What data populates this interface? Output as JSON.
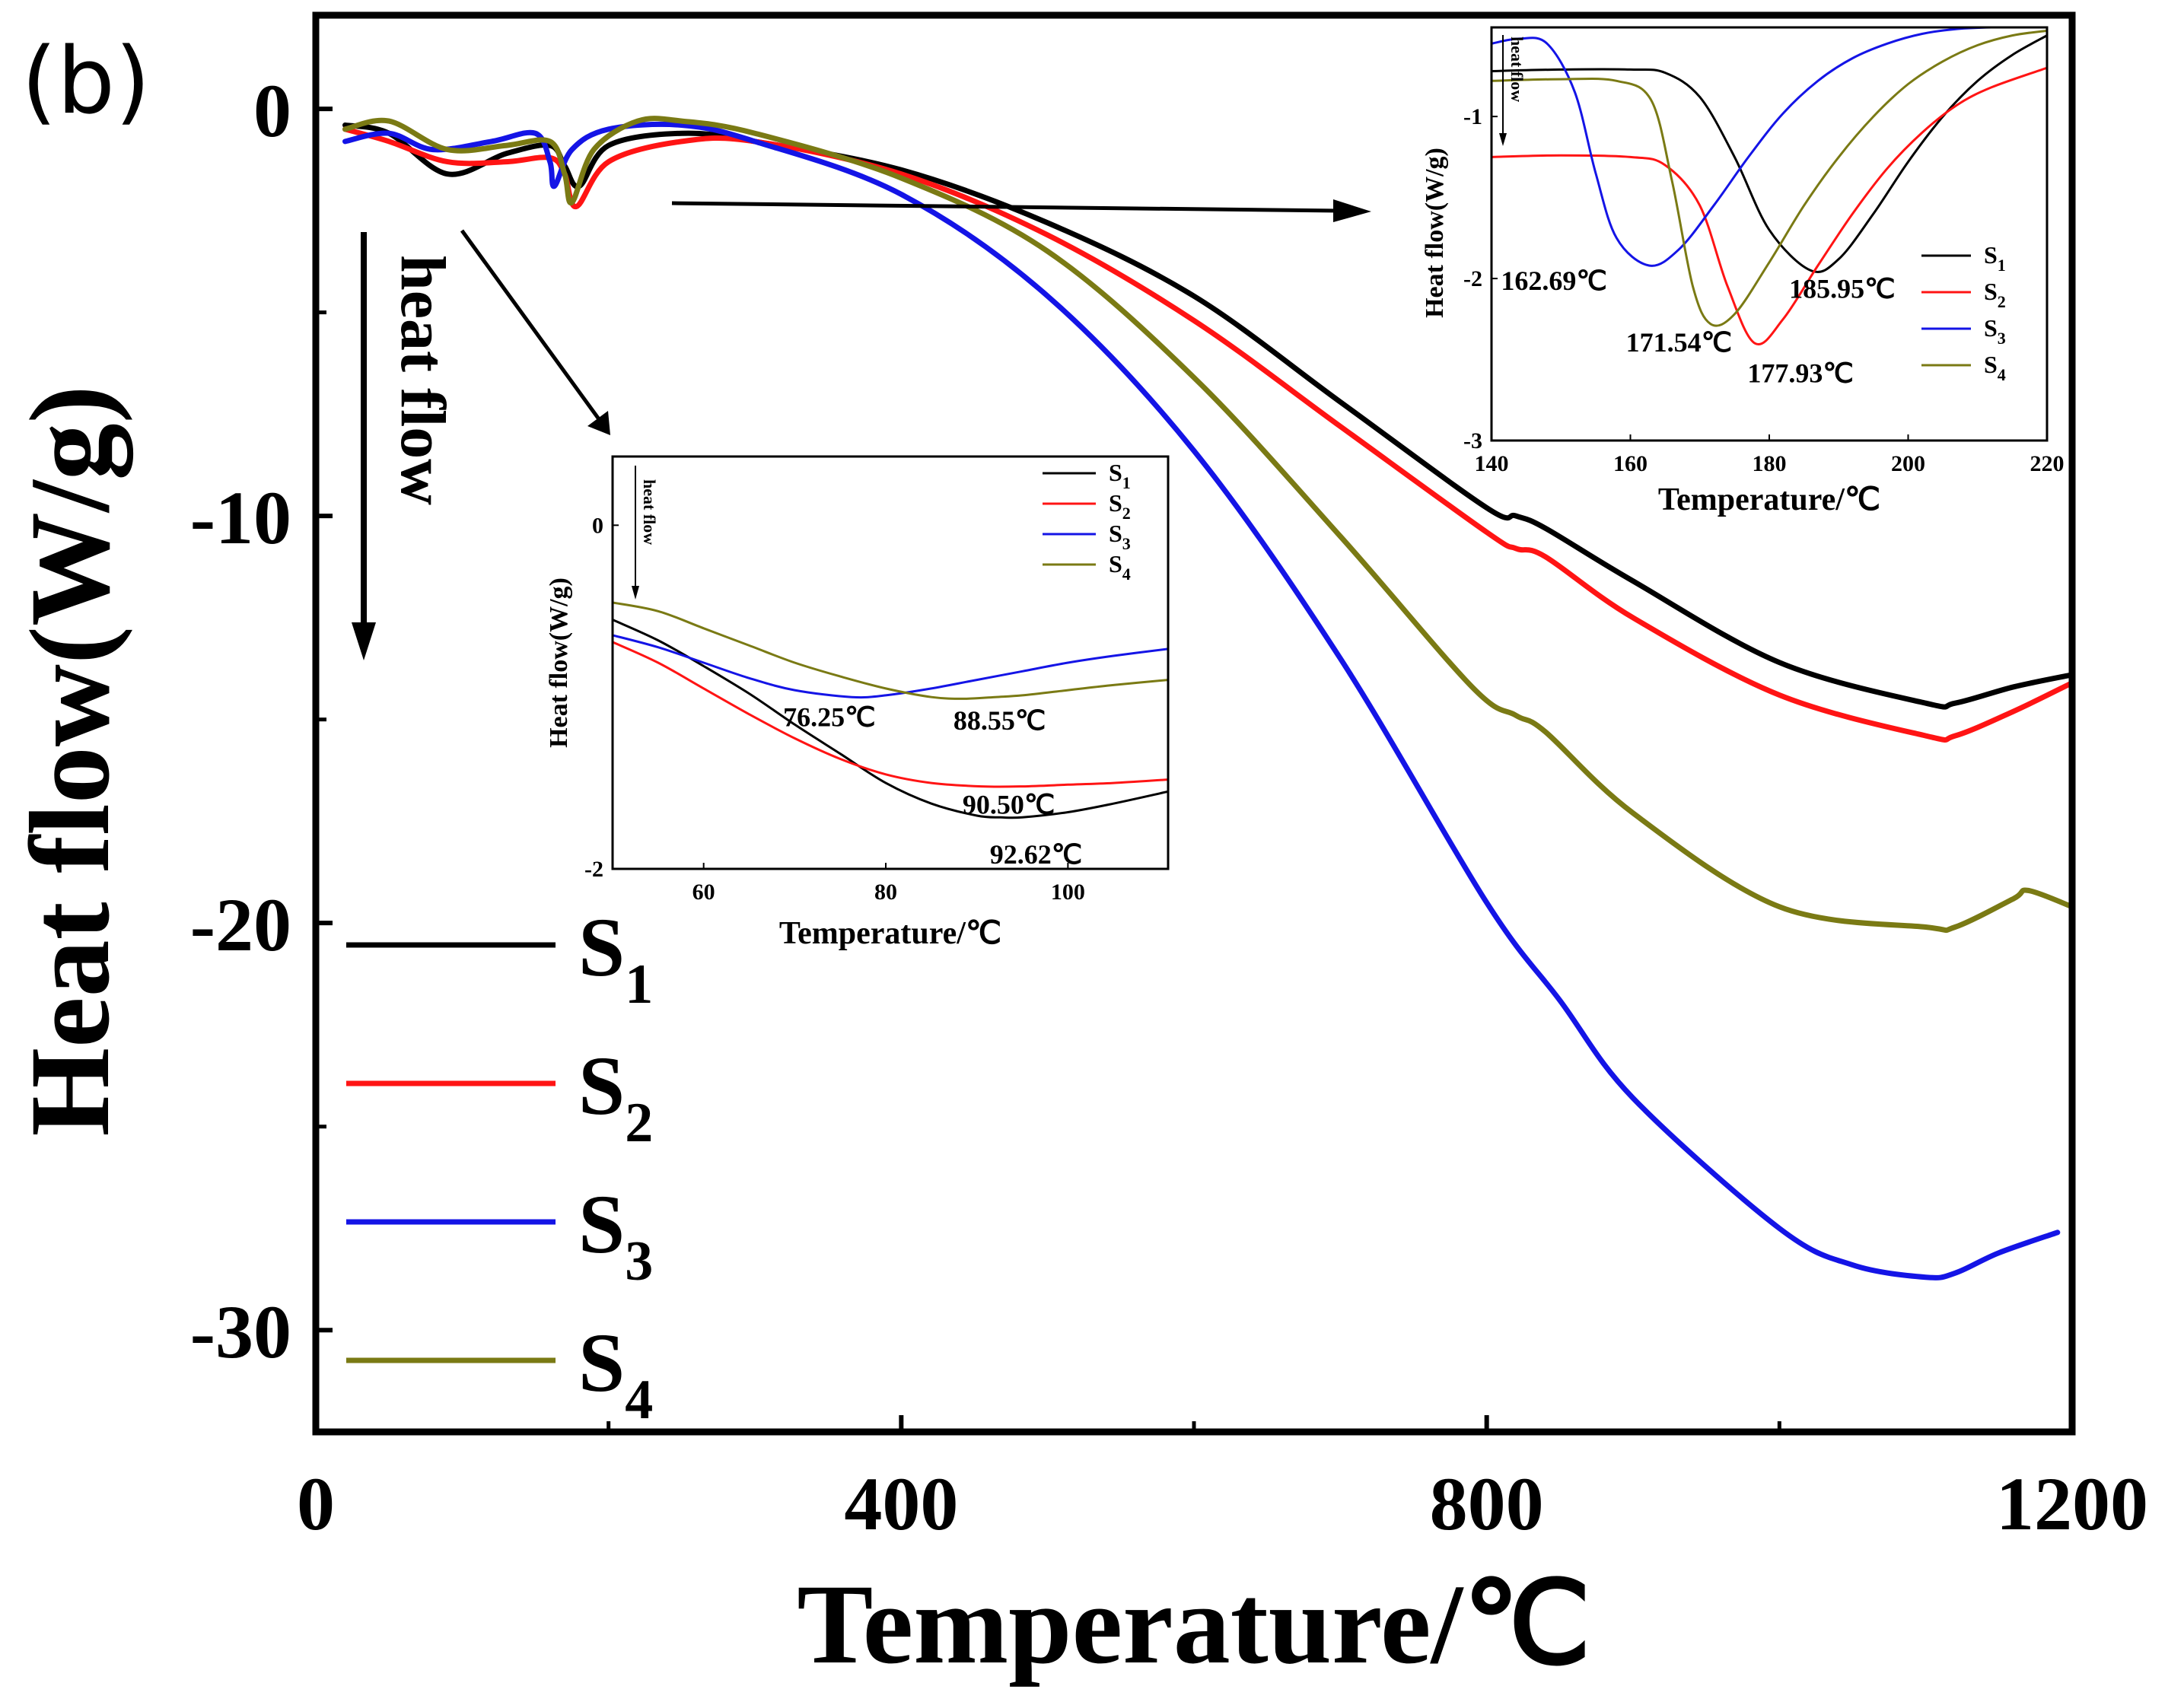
{
  "panel_label": "(b)",
  "heat_flow_label": "heat flow",
  "colors": {
    "S1": "#000000",
    "S2": "#ff1414",
    "S3": "#1414e6",
    "S4": "#7a7a14"
  },
  "chart_data": [
    {
      "id": "main",
      "type": "line",
      "xlabel": "Temperature/℃",
      "ylabel": "Heat flow(W/g)",
      "xlim": [
        0,
        1200
      ],
      "ylim": [
        -32.5,
        2.3
      ],
      "xticks": [
        0,
        400,
        800,
        1200
      ],
      "xtick_labels": [
        "0",
        "400",
        "800",
        "1200"
      ],
      "yticks": [
        0,
        -10,
        -20,
        -30
      ],
      "ytick_labels": [
        "0",
        "-10",
        "-20",
        "-30"
      ],
      "legend": [
        {
          "base": "S",
          "sub": "1",
          "series": "S1"
        },
        {
          "base": "S",
          "sub": "2",
          "series": "S2"
        },
        {
          "base": "S",
          "sub": "3",
          "series": "S3"
        },
        {
          "base": "S",
          "sub": "4",
          "series": "S4"
        }
      ],
      "series": [
        {
          "name": "S1",
          "x": [
            20,
            50,
            90,
            130,
            160,
            170,
            180,
            200,
            250,
            300,
            400,
            500,
            600,
            700,
            800,
            820,
            840,
            900,
            1000,
            1100,
            1120,
            1160,
            1200
          ],
          "y": [
            -0.4,
            -0.6,
            -1.6,
            -1.1,
            -0.9,
            -1.4,
            -1.9,
            -0.9,
            -0.6,
            -0.8,
            -1.5,
            -2.8,
            -4.6,
            -7.2,
            -9.8,
            -10.0,
            -10.3,
            -11.6,
            -13.6,
            -14.6,
            -14.6,
            -14.2,
            -13.9
          ]
        },
        {
          "name": "S2",
          "x": [
            20,
            50,
            90,
            130,
            160,
            170,
            178,
            200,
            250,
            300,
            400,
            500,
            600,
            700,
            800,
            820,
            840,
            900,
            1000,
            1100,
            1120,
            1160,
            1200
          ],
          "y": [
            -0.5,
            -0.8,
            -1.3,
            -1.3,
            -1.2,
            -1.6,
            -2.4,
            -1.3,
            -0.8,
            -0.8,
            -1.6,
            -3.1,
            -5.2,
            -7.8,
            -10.4,
            -10.8,
            -11.0,
            -12.5,
            -14.4,
            -15.4,
            -15.4,
            -14.8,
            -14.1
          ]
        },
        {
          "name": "S3",
          "x": [
            20,
            50,
            80,
            120,
            150,
            160,
            163,
            175,
            200,
            250,
            300,
            400,
            500,
            600,
            700,
            800,
            850,
            900,
            1000,
            1050,
            1100,
            1120,
            1150,
            1190
          ],
          "y": [
            -0.8,
            -0.6,
            -1.0,
            -0.8,
            -0.6,
            -1.3,
            -1.9,
            -1.0,
            -0.5,
            -0.4,
            -0.8,
            -2.1,
            -4.6,
            -8.4,
            -13.5,
            -19.5,
            -21.9,
            -24.3,
            -27.5,
            -28.4,
            -28.7,
            -28.6,
            -28.1,
            -27.6
          ]
        },
        {
          "name": "S4",
          "x": [
            20,
            50,
            90,
            130,
            160,
            170,
            175,
            190,
            220,
            250,
            300,
            400,
            500,
            600,
            700,
            790,
            820,
            840,
            900,
            1000,
            1100,
            1120,
            1160,
            1170,
            1200
          ],
          "y": [
            -0.5,
            -0.3,
            -1.0,
            -0.9,
            -0.8,
            -1.6,
            -2.3,
            -1.0,
            -0.3,
            -0.3,
            -0.6,
            -1.7,
            -3.5,
            -6.6,
            -10.5,
            -14.2,
            -14.9,
            -15.3,
            -17.3,
            -19.6,
            -20.1,
            -20.1,
            -19.4,
            -19.2,
            -19.6
          ]
        }
      ]
    },
    {
      "id": "inset_low",
      "type": "line",
      "xlabel": "Temperature/℃",
      "ylabel": "Heat flow(W/g)",
      "xlim": [
        50,
        111
      ],
      "ylim": [
        -2,
        0.4
      ],
      "xticks": [
        60,
        80,
        100
      ],
      "xtick_labels": [
        "60",
        "80",
        "100"
      ],
      "yticks": [
        0,
        -2
      ],
      "ytick_labels": [
        "0",
        "-2"
      ],
      "legend": [
        {
          "base": "S",
          "sub": "1",
          "series": "S1"
        },
        {
          "base": "S",
          "sub": "2",
          "series": "S2"
        },
        {
          "base": "S",
          "sub": "3",
          "series": "S3"
        },
        {
          "base": "S",
          "sub": "4",
          "series": "S4"
        }
      ],
      "annotations": [
        {
          "text": "76.25℃",
          "x": 73.8,
          "y": -1.17
        },
        {
          "text": "88.55℃",
          "x": 92.5,
          "y": -1.19
        },
        {
          "text": "90.50℃",
          "x": 93.5,
          "y": -1.68
        },
        {
          "text": "92.62℃",
          "x": 96.5,
          "y": -1.97
        }
      ],
      "series": [
        {
          "name": "S1",
          "x": [
            50,
            55,
            60,
            65,
            70,
            75,
            80,
            85,
            90,
            92.62,
            95,
            100,
            105,
            111
          ],
          "y": [
            -0.55,
            -0.67,
            -0.82,
            -0.98,
            -1.16,
            -1.33,
            -1.5,
            -1.62,
            -1.69,
            -1.7,
            -1.7,
            -1.67,
            -1.62,
            -1.55
          ]
        },
        {
          "name": "S2",
          "x": [
            50,
            55,
            60,
            65,
            70,
            75,
            80,
            85,
            90.5,
            95,
            100,
            105,
            111
          ],
          "y": [
            -0.68,
            -0.8,
            -0.95,
            -1.1,
            -1.24,
            -1.36,
            -1.45,
            -1.5,
            -1.52,
            -1.52,
            -1.51,
            -1.5,
            -1.48
          ]
        },
        {
          "name": "S3",
          "x": [
            50,
            55,
            60,
            65,
            70,
            76.25,
            80,
            85,
            90,
            95,
            100,
            105,
            111
          ],
          "y": [
            -0.64,
            -0.71,
            -0.8,
            -0.89,
            -0.96,
            -1.0,
            -0.99,
            -0.95,
            -0.9,
            -0.85,
            -0.8,
            -0.76,
            -0.72
          ]
        },
        {
          "name": "S4",
          "x": [
            50,
            55,
            60,
            65,
            70,
            75,
            80,
            85,
            88.55,
            92,
            95,
            100,
            105,
            111
          ],
          "y": [
            -0.45,
            -0.5,
            -0.6,
            -0.7,
            -0.8,
            -0.88,
            -0.95,
            -1.0,
            -1.01,
            -1.0,
            -0.99,
            -0.96,
            -0.93,
            -0.9
          ]
        }
      ]
    },
    {
      "id": "inset_high",
      "type": "line",
      "xlabel": "Temperature/℃",
      "ylabel": "Heat flow(W/g)",
      "xlim": [
        140,
        220
      ],
      "ylim": [
        -3,
        -0.45
      ],
      "xticks": [
        140,
        160,
        180,
        200,
        220
      ],
      "xtick_labels": [
        "140",
        "160",
        "180",
        "200",
        "220"
      ],
      "yticks": [
        -1,
        -2,
        -3
      ],
      "ytick_labels": [
        "-1",
        "-2",
        "-3"
      ],
      "legend": [
        {
          "base": "S",
          "sub": "1",
          "series": "S1"
        },
        {
          "base": "S",
          "sub": "2",
          "series": "S2"
        },
        {
          "base": "S",
          "sub": "3",
          "series": "S3"
        },
        {
          "base": "S",
          "sub": "4",
          "series": "S4"
        }
      ],
      "annotations": [
        {
          "text": "162.69℃",
          "x": 149,
          "y": -2.07
        },
        {
          "text": "171.54℃",
          "x": 167,
          "y": -2.45
        },
        {
          "text": "185.95℃",
          "x": 190.5,
          "y": -2.12
        },
        {
          "text": "177.93℃",
          "x": 184.5,
          "y": -2.64
        }
      ],
      "series": [
        {
          "name": "S1",
          "x": [
            140,
            150,
            160,
            165,
            170,
            175,
            180,
            185.95,
            190,
            195,
            200,
            205,
            210,
            215,
            220
          ],
          "y": [
            -0.72,
            -0.71,
            -0.71,
            -0.73,
            -0.88,
            -1.25,
            -1.7,
            -1.95,
            -1.88,
            -1.6,
            -1.28,
            -1.0,
            -0.78,
            -0.62,
            -0.5
          ]
        },
        {
          "name": "S2",
          "x": [
            140,
            150,
            160,
            165,
            170,
            174,
            177.93,
            182,
            187,
            192,
            197,
            202,
            207,
            212,
            220
          ],
          "y": [
            -1.25,
            -1.24,
            -1.25,
            -1.3,
            -1.55,
            -2.05,
            -2.4,
            -2.25,
            -1.92,
            -1.6,
            -1.32,
            -1.1,
            -0.93,
            -0.82,
            -0.7
          ]
        },
        {
          "name": "S3",
          "x": [
            140,
            144,
            148,
            152,
            155,
            158,
            162.69,
            167,
            172,
            177,
            182,
            187,
            192,
            197,
            202,
            207,
            212,
            220
          ],
          "y": [
            -0.55,
            -0.52,
            -0.55,
            -0.85,
            -1.35,
            -1.75,
            -1.92,
            -1.82,
            -1.55,
            -1.25,
            -0.98,
            -0.78,
            -0.64,
            -0.55,
            -0.49,
            -0.46,
            -0.45,
            -0.45
          ]
        },
        {
          "name": "S4",
          "x": [
            140,
            150,
            158,
            163,
            166,
            169,
            171.54,
            175,
            180,
            185,
            190,
            195,
            200,
            205,
            210,
            215,
            220
          ],
          "y": [
            -0.78,
            -0.77,
            -0.78,
            -0.9,
            -1.4,
            -2.05,
            -2.28,
            -2.22,
            -1.9,
            -1.55,
            -1.25,
            -1.0,
            -0.8,
            -0.66,
            -0.56,
            -0.5,
            -0.47
          ]
        }
      ]
    }
  ]
}
